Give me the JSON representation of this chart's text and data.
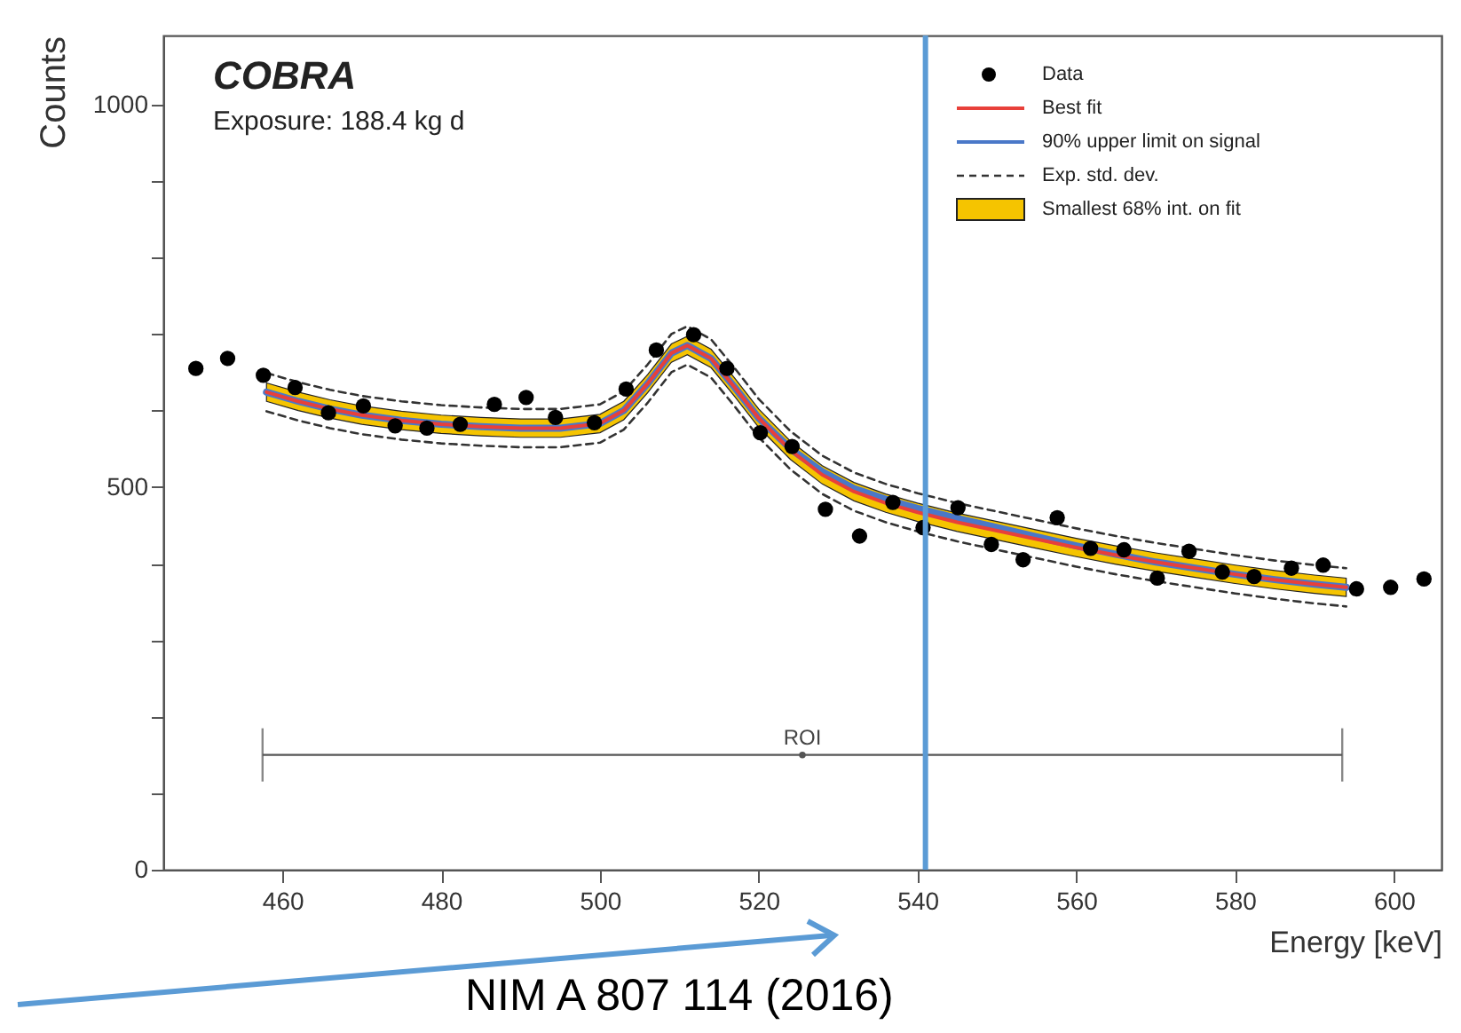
{
  "chart_data": {
    "type": "line",
    "xlabel": "Energy [keV]",
    "ylabel": "Counts",
    "xlim": [
      445,
      606
    ],
    "ylim": [
      0,
      1090
    ],
    "xticks": [
      460,
      480,
      500,
      520,
      540,
      560,
      580,
      600
    ],
    "yticks": [
      0,
      {
        "value": 100,
        "label": null
      },
      {
        "value": 200,
        "label": null
      },
      {
        "value": 300,
        "label": null
      },
      {
        "value": 400,
        "label": null
      },
      500,
      {
        "value": 600,
        "label": null
      },
      {
        "value": 700,
        "label": null
      },
      {
        "value": 800,
        "label": null
      },
      {
        "value": 900,
        "label": null
      },
      1000
    ],
    "legend": "top right",
    "annotations": [
      "COBRA",
      "Exposure: 188.4 kg d",
      "NIM A 807 114 (2016)",
      "Smallest 68% int. on fit"
    ],
    "ref_lines": [
      {
        "axis": "x",
        "value": 541,
        "label": null,
        "color": "#5b9bd5"
      }
    ],
    "series": [
      {
        "name": "Data",
        "type": "scatter",
        "marker": "circle",
        "color": "#000000",
        "x": [
          449.1,
          453.1,
          457.6,
          461.6,
          465.8,
          470.2,
          474.2,
          478.2,
          482.4,
          486.7,
          490.7,
          494.4,
          499.3,
          503.3,
          507.1,
          511.8,
          516,
          520.2,
          524.2,
          528.4,
          532.7,
          536.9,
          540.7,
          545.1,
          549.3,
          553.3,
          557.6,
          561.8,
          566,
          570.2,
          574.2,
          578.4,
          582.4,
          587.1,
          591.1,
          595.3,
          599.6,
          603.8
        ],
        "values": [
          655,
          668,
          646,
          630,
          597,
          606,
          580,
          577,
          582,
          608,
          617,
          591,
          584,
          628,
          679,
          699,
          655,
          571,
          553,
          471,
          436,
          480,
          447,
          473,
          425,
          405,
          460,
          420,
          418,
          381,
          416,
          389,
          383,
          394,
          398,
          367,
          369,
          380
        ]
      },
      {
        "name": "Best fit",
        "type": "line",
        "line_style": "solid",
        "color": "#e8403a",
        "x": [
          458,
          462,
          466,
          470,
          475,
          480,
          485,
          490,
          495,
          500,
          503,
          506,
          509,
          511,
          514,
          517,
          520,
          524,
          528,
          532,
          536,
          540,
          545,
          550,
          555,
          560,
          565,
          570,
          575,
          580,
          585,
          590,
          594
        ],
        "values": [
          624,
          612,
          602,
          594,
          587,
          582,
          579,
          577,
          577,
          583,
          600,
          635,
          675,
          685,
          668,
          630,
          590,
          548,
          516,
          494,
          479,
          467,
          454,
          443,
          432,
          421,
          411,
          402,
          394,
          386,
          379,
          373,
          369
        ],
        "lower": [
          612,
          600,
          590,
          582,
          575,
          570,
          567,
          565,
          565,
          571,
          588,
          623,
          663,
          673,
          656,
          618,
          578,
          536,
          504,
          482,
          467,
          455,
          442,
          431,
          420,
          409,
          399,
          390,
          382,
          374,
          367,
          361,
          357
        ],
        "upper": [
          636,
          624,
          614,
          606,
          599,
          594,
          591,
          589,
          589,
          595,
          612,
          647,
          687,
          697,
          680,
          642,
          602,
          560,
          528,
          506,
          491,
          479,
          466,
          455,
          444,
          433,
          423,
          414,
          406,
          398,
          391,
          385,
          381
        ]
      },
      {
        "name": "90% upper limit on signal",
        "type": "line",
        "line_style": "solid",
        "color": "#4a78c8",
        "x": [
          458,
          462,
          466,
          470,
          475,
          480,
          485,
          490,
          495,
          500,
          503,
          506,
          509,
          511,
          514,
          517,
          520,
          524,
          528,
          532,
          536,
          540,
          545,
          550,
          555,
          560,
          565,
          570,
          575,
          580,
          585,
          590,
          594
        ],
        "values": [
          624,
          612,
          602,
          594,
          587,
          582,
          579,
          577,
          577,
          583,
          600,
          635,
          675,
          685,
          668,
          630,
          590,
          550,
          520,
          498,
          484,
          472,
          459,
          447,
          435,
          423,
          412,
          402,
          394,
          386,
          379,
          373,
          369
        ]
      },
      {
        "name": "Exp. std. dev.",
        "type": "line",
        "line_style": "dashed",
        "color": "#333333",
        "x": [
          458,
          462,
          466,
          470,
          475,
          480,
          485,
          490,
          495,
          500,
          503,
          506,
          509,
          511,
          514,
          517,
          520,
          524,
          528,
          532,
          536,
          540,
          545,
          550,
          555,
          560,
          565,
          570,
          575,
          580,
          585,
          590,
          594
        ],
        "values": [
          649,
          637,
          627,
          619,
          612,
          607,
          604,
          602,
          602,
          608,
          625,
          660,
          700,
          710,
          693,
          655,
          615,
          573,
          541,
          519,
          504,
          492,
          479,
          468,
          457,
          446,
          436,
          427,
          419,
          411,
          404,
          398,
          394
        ]
      },
      {
        "type": "line",
        "line_style": "dashed",
        "color": "#333333",
        "x": [
          458,
          462,
          466,
          470,
          475,
          480,
          485,
          490,
          495,
          500,
          503,
          506,
          509,
          511,
          514,
          517,
          520,
          524,
          528,
          532,
          536,
          540,
          545,
          550,
          555,
          560,
          565,
          570,
          575,
          580,
          585,
          590,
          594
        ],
        "values": [
          599,
          587,
          577,
          569,
          562,
          557,
          554,
          552,
          552,
          558,
          575,
          610,
          650,
          660,
          643,
          605,
          565,
          523,
          491,
          469,
          454,
          442,
          429,
          418,
          407,
          396,
          386,
          377,
          369,
          361,
          354,
          348,
          344
        ]
      },
      {
        "name": "ROI",
        "type": "scatter",
        "marker": "circle",
        "color": "#555555",
        "x": [
          525.5
        ],
        "values": [
          150
        ],
        "xerrors": [
          [
            457.5,
            593.5
          ]
        ]
      }
    ]
  }
}
